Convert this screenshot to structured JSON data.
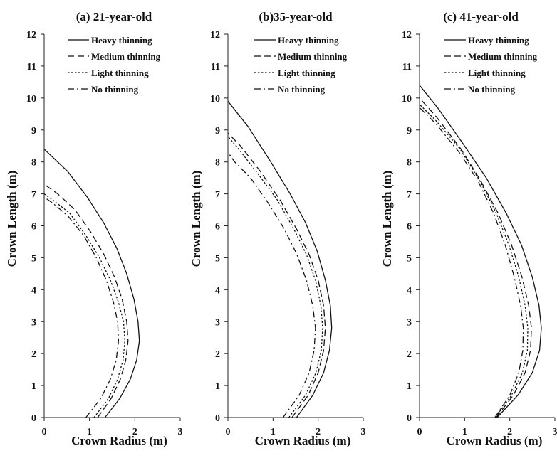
{
  "chart_data": [
    {
      "type": "line",
      "title": "(a) 21-year-old",
      "xlabel": "Crown Radius (m)",
      "ylabel": "Crown Length (m)",
      "xlim": [
        0,
        3
      ],
      "ylim": [
        0,
        12
      ],
      "xticks": [
        "0",
        "1",
        "2",
        "3"
      ],
      "yticks": [
        "0",
        "1",
        "2",
        "3",
        "4",
        "5",
        "6",
        "7",
        "8",
        "9",
        "10",
        "11",
        "12"
      ],
      "grid": false,
      "legend_position": "top-right",
      "series": [
        {
          "name": "Heavy thinning",
          "style": "solid",
          "x": [
            1.34,
            1.67,
            1.9,
            2.04,
            2.1,
            2.07,
            1.98,
            1.82,
            1.6,
            1.31,
            0.95,
            0.52,
            0.0
          ],
          "y": [
            0,
            0.6,
            1.2,
            1.8,
            2.4,
            3.0,
            3.7,
            4.5,
            5.3,
            6.1,
            6.9,
            7.7,
            8.4
          ]
        },
        {
          "name": "Medium thinning",
          "style": "dashed",
          "x": [
            1.18,
            1.48,
            1.68,
            1.8,
            1.85,
            1.82,
            1.72,
            1.55,
            1.32,
            1.03,
            0.68,
            0.3,
            0.0
          ],
          "y": [
            0,
            0.6,
            1.2,
            1.8,
            2.4,
            3.0,
            3.7,
            4.4,
            5.1,
            5.8,
            6.5,
            7.0,
            7.3
          ]
        },
        {
          "name": "Light thinning",
          "style": "dotted",
          "x": [
            1.1,
            1.42,
            1.62,
            1.74,
            1.78,
            1.75,
            1.64,
            1.46,
            1.22,
            0.92,
            0.56,
            0.2,
            0.0
          ],
          "y": [
            0,
            0.6,
            1.2,
            1.8,
            2.4,
            3.0,
            3.6,
            4.3,
            5.0,
            5.7,
            6.4,
            6.8,
            7.0
          ]
        },
        {
          "name": "No thinning",
          "style": "dashdot",
          "x": [
            0.92,
            1.25,
            1.46,
            1.59,
            1.64,
            1.62,
            1.53,
            1.37,
            1.15,
            0.87,
            0.53,
            0.2,
            0.0
          ],
          "y": [
            0,
            0.6,
            1.2,
            1.8,
            2.4,
            3.0,
            3.6,
            4.3,
            5.0,
            5.7,
            6.3,
            6.7,
            6.9
          ]
        }
      ]
    },
    {
      "type": "line",
      "title": "(b)35-year-old",
      "xlabel": "Crown Radius (m)",
      "ylabel": "Crown Length (m)",
      "xlim": [
        0,
        3
      ],
      "ylim": [
        0,
        12
      ],
      "xticks": [
        "0",
        "1",
        "2",
        "3"
      ],
      "yticks": [
        "0",
        "1",
        "2",
        "3",
        "4",
        "5",
        "6",
        "7",
        "8",
        "9",
        "10",
        "11",
        "12"
      ],
      "grid": false,
      "legend_position": "top-right",
      "series": [
        {
          "name": "Heavy thinning",
          "style": "solid",
          "x": [
            1.52,
            1.88,
            2.12,
            2.25,
            2.3,
            2.27,
            2.16,
            1.98,
            1.72,
            1.38,
            0.95,
            0.45,
            0.0
          ],
          "y": [
            0,
            0.7,
            1.4,
            2.1,
            2.8,
            3.5,
            4.3,
            5.2,
            6.1,
            7.0,
            8.0,
            9.1,
            9.9
          ]
        },
        {
          "name": "Medium thinning",
          "style": "dashed",
          "x": [
            1.42,
            1.78,
            2.0,
            2.12,
            2.16,
            2.12,
            2.0,
            1.8,
            1.52,
            1.16,
            0.72,
            0.28,
            0.0
          ],
          "y": [
            0,
            0.7,
            1.4,
            2.1,
            2.8,
            3.5,
            4.3,
            5.1,
            5.9,
            6.8,
            7.7,
            8.5,
            8.9
          ]
        },
        {
          "name": "Light thinning",
          "style": "dotted",
          "x": [
            1.35,
            1.72,
            1.95,
            2.07,
            2.1,
            2.06,
            1.94,
            1.74,
            1.46,
            1.1,
            0.68,
            0.24,
            0.0
          ],
          "y": [
            0,
            0.7,
            1.4,
            2.1,
            2.8,
            3.5,
            4.3,
            5.1,
            5.9,
            6.8,
            7.6,
            8.4,
            8.8
          ]
        },
        {
          "name": "No thinning",
          "style": "dashdot",
          "x": [
            1.22,
            1.58,
            1.8,
            1.91,
            1.94,
            1.88,
            1.74,
            1.53,
            1.25,
            0.9,
            0.5,
            0.15,
            0.0
          ],
          "y": [
            0,
            0.7,
            1.4,
            2.1,
            2.8,
            3.5,
            4.3,
            5.1,
            5.9,
            6.7,
            7.5,
            8.0,
            8.3
          ]
        }
      ]
    },
    {
      "type": "line",
      "title": "(c) 41-year-old",
      "xlabel": "Crown Radius (m)",
      "ylabel": "Crown Length (m)",
      "xlim": [
        0,
        3
      ],
      "ylim": [
        0,
        12
      ],
      "xticks": [
        "0",
        "1",
        "2",
        "3"
      ],
      "yticks": [
        "0",
        "1",
        "2",
        "3",
        "4",
        "5",
        "6",
        "7",
        "8",
        "9",
        "10",
        "11",
        "12"
      ],
      "grid": false,
      "legend_position": "top-right",
      "series": [
        {
          "name": "Heavy thinning",
          "style": "solid",
          "x": [
            1.72,
            2.18,
            2.5,
            2.66,
            2.7,
            2.65,
            2.5,
            2.26,
            1.92,
            1.48,
            0.95,
            0.4,
            0.0
          ],
          "y": [
            0,
            0.7,
            1.4,
            2.1,
            2.8,
            3.5,
            4.4,
            5.4,
            6.4,
            7.5,
            8.6,
            9.7,
            10.4
          ]
        },
        {
          "name": "Medium thinning",
          "style": "dashed",
          "x": [
            1.7,
            2.08,
            2.34,
            2.46,
            2.48,
            2.42,
            2.27,
            2.04,
            1.74,
            1.36,
            0.92,
            0.38,
            0.0
          ],
          "y": [
            0,
            0.7,
            1.4,
            2.1,
            2.8,
            3.5,
            4.4,
            5.4,
            6.4,
            7.4,
            8.4,
            9.4,
            10.0
          ]
        },
        {
          "name": "Light thinning",
          "style": "dotted",
          "x": [
            1.68,
            2.04,
            2.28,
            2.39,
            2.4,
            2.34,
            2.2,
            1.98,
            1.7,
            1.34,
            0.9,
            0.36,
            0.0
          ],
          "y": [
            0,
            0.7,
            1.4,
            2.1,
            2.8,
            3.5,
            4.4,
            5.4,
            6.4,
            7.4,
            8.4,
            9.3,
            9.8
          ]
        },
        {
          "name": "No thinning",
          "style": "dashdot",
          "x": [
            1.67,
            2.0,
            2.2,
            2.29,
            2.3,
            2.24,
            2.1,
            1.9,
            1.64,
            1.3,
            0.88,
            0.36,
            0.0
          ],
          "y": [
            0,
            0.7,
            1.4,
            2.1,
            2.8,
            3.5,
            4.4,
            5.4,
            6.4,
            7.4,
            8.3,
            9.2,
            9.7
          ]
        }
      ]
    }
  ]
}
